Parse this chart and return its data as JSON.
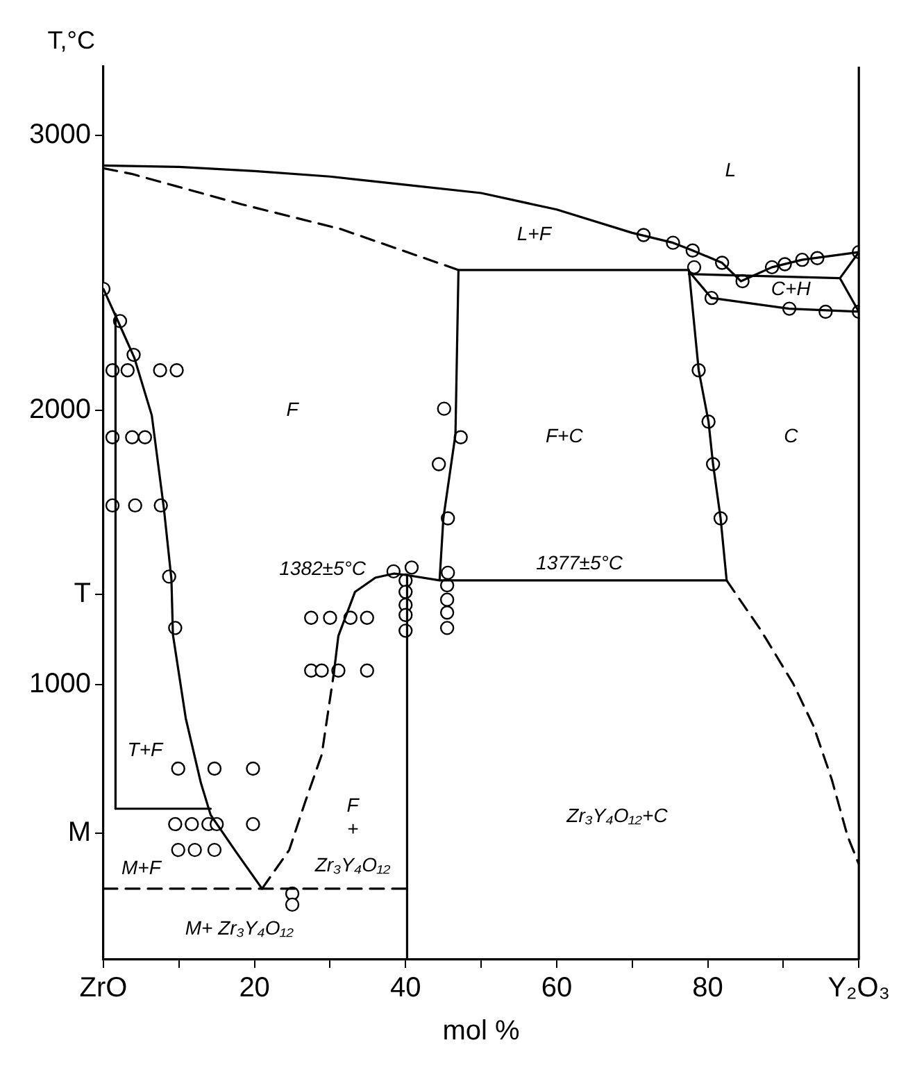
{
  "chart_data": {
    "type": "line",
    "xlabel": "mol %",
    "ylabel": "T,°C",
    "xlim": [
      0,
      100
    ],
    "ylim": [
      0,
      3250
    ],
    "xticks": [
      {
        "value": 0,
        "label": "ZrO"
      },
      {
        "value": 10,
        "label": null
      },
      20,
      {
        "value": 30,
        "label": null
      },
      40,
      {
        "value": 50,
        "label": null
      },
      60,
      {
        "value": 70,
        "label": null
      },
      80,
      {
        "value": 90,
        "label": null
      },
      {
        "value": 100,
        "label": "Y₂O₃"
      }
    ],
    "yticks": [
      {
        "value": 460,
        "label": "M"
      },
      1000,
      {
        "value": 1330,
        "label": "T"
      },
      2000,
      3000
    ],
    "grid": false,
    "legend": false,
    "marker": "none",
    "line_style": "solid",
    "series": [
      {
        "color": "#000000",
        "x": [
          0,
          10,
          20,
          30,
          40,
          50,
          60,
          70,
          75.4,
          78,
          81.9,
          84.4,
          88.5,
          92.5,
          100
        ],
        "values": [
          2890,
          2885,
          2870,
          2850,
          2820,
          2790,
          2730,
          2645,
          2609,
          2581,
          2536,
          2469,
          2520,
          2547,
          2575
        ]
      },
      {
        "color": "#000000",
        "line_style": "dashed",
        "x": [
          0,
          3.7,
          18.3,
          31.4,
          47
        ],
        "values": [
          2880,
          2860,
          2749,
          2659,
          2510
        ]
      },
      {
        "color": "#000000",
        "x": [
          44.5,
          45,
          46.6,
          47,
          77.5,
          78.8,
          80.1,
          80.7,
          81.7,
          82.5,
          44.5,
          40,
          38.5,
          36,
          33.3,
          31.1,
          30.5
        ],
        "values": [
          1380,
          1606,
          1911,
          2510,
          2510,
          2145,
          1958,
          1803,
          1606,
          1380,
          1380,
          1400,
          1405,
          1390,
          1338,
          1178,
          1042
        ]
      },
      {
        "color": "#000000",
        "line_style": "dashed",
        "x": [
          82.5,
          87,
          91.3,
          94,
          96.4,
          98.5,
          100
        ],
        "values": [
          1380,
          1200,
          1005,
          850,
          657,
          450,
          347
        ]
      },
      {
        "color": "#000000",
        "x": [
          77.5,
          97.5
        ],
        "values": [
          2495,
          2480
        ]
      },
      {
        "color": "#000000",
        "x": [
          100,
          97.5,
          100
        ],
        "values": [
          2575,
          2480,
          2358
        ]
      },
      {
        "color": "#000000",
        "x": [
          77.5,
          80.5,
          90.8,
          100
        ],
        "values": [
          2505,
          2408,
          2369,
          2358
        ]
      },
      {
        "color": "#000000",
        "x": [
          0,
          2.1,
          4.1,
          6.4,
          8,
          9,
          9.2,
          10.9,
          12.9,
          14.2,
          17.6,
          21
        ],
        "values": [
          2441,
          2313,
          2190,
          1981,
          1643,
          1385,
          1183,
          878,
          643,
          526,
          390,
          258
        ]
      },
      {
        "color": "#000000",
        "line_style": "dashed",
        "x": [
          21,
          24.6,
          26.7,
          28.9,
          30.5
        ],
        "values": [
          258,
          399,
          573,
          746,
          1042
        ]
      },
      {
        "color": "#000000",
        "x": [
          40.2,
          40.2
        ],
        "values": [
          1400,
          0
        ]
      },
      {
        "color": "#000000",
        "line_style": "dashed",
        "x": [
          0,
          40.2
        ],
        "values": [
          258,
          258
        ]
      },
      {
        "color": "#000000",
        "x": [
          1.6,
          14.2
        ],
        "values": [
          549,
          549
        ]
      },
      {
        "color": "#000000",
        "x": [
          1.6,
          1.6
        ],
        "values": [
          2350,
          549
        ]
      },
      {
        "type": "scatter",
        "marker": "circle",
        "color": "#000000",
        "x": [
          0,
          2.2,
          4,
          1.2,
          3.2,
          7.5,
          9.7,
          1.2,
          3.8,
          5.5,
          1.2,
          4.2,
          7.6,
          8.7,
          9.5,
          45.1,
          47.3,
          44.4,
          45.6,
          45.6,
          40.8,
          38.4,
          40,
          40,
          40,
          40,
          40,
          45.5,
          45.5,
          45.5,
          45.5,
          27.5,
          30,
          32.7,
          34.9,
          27.5,
          28.9,
          31.1,
          34.9,
          9.9,
          14.7,
          19.8,
          9.5,
          11.7,
          13.9,
          15,
          19.8,
          9.9,
          12.1,
          14.7,
          25,
          25,
          71.5,
          75.4,
          78,
          81.9,
          78.2,
          84.6,
          88.5,
          90.2,
          92.5,
          94.5,
          100,
          100,
          80.5,
          90.8,
          95.6,
          78.8,
          80.1,
          80.7,
          81.7
        ],
        "values": [
          2441,
          2324,
          2201,
          2145,
          2145,
          2145,
          2145,
          1901,
          1901,
          1901,
          1653,
          1653,
          1653,
          1394,
          1207,
          2005,
          1901,
          1803,
          1606,
          1408,
          1427,
          1413,
          1380,
          1338,
          1291,
          1254,
          1197,
          1362,
          1310,
          1263,
          1207,
          1244,
          1244,
          1244,
          1244,
          1052,
          1052,
          1052,
          1052,
          695,
          695,
          695,
          493,
          493,
          493,
          493,
          493,
          399,
          399,
          399,
          240,
          200,
          2637,
          2609,
          2581,
          2536,
          2520,
          2469,
          2520,
          2531,
          2547,
          2553,
          2575,
          2358,
          2408,
          2369,
          2358,
          2145,
          1958,
          1803,
          1606
        ]
      }
    ],
    "annotations": [
      "L",
      "L+F",
      "F",
      "F+C",
      "C",
      "C+H",
      "1382±5°C",
      "1377±5°C",
      "T+F",
      "M+F",
      "F",
      "+",
      "Zr₃Y₄O₁₂",
      "M+ Zr₃Y₄O₁₂",
      "Zr₃Y₄O₁₂+C"
    ]
  }
}
